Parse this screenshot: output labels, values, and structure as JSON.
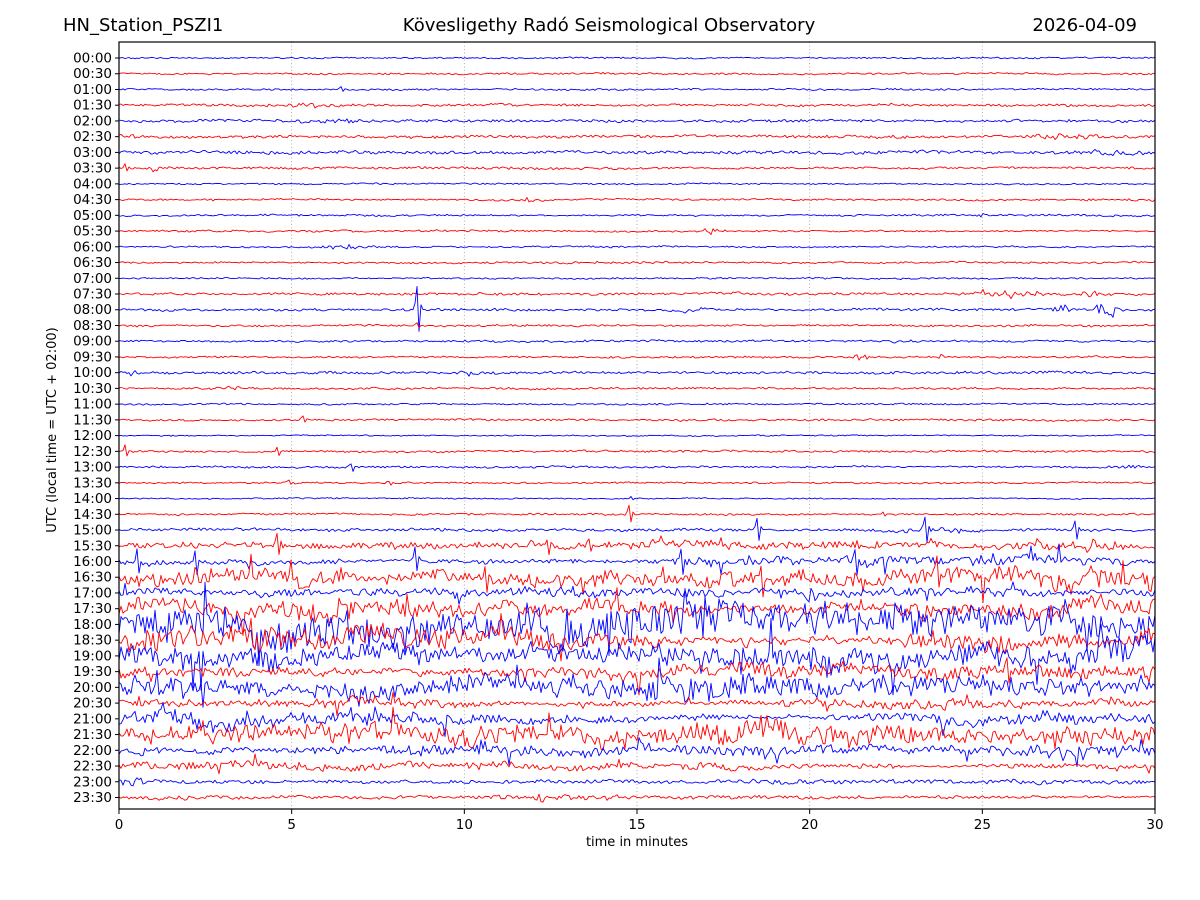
{
  "header": {
    "station": "HN_Station_PSZI1",
    "observatory": "Kövesligethy Radó Seismological Observatory",
    "date": "2026-04-09"
  },
  "chart_data": {
    "type": "line",
    "subtype": "helicorder-seismogram",
    "station": "HN_Station_PSZI1",
    "title": "Kövesligethy Radó Seismological Observatory",
    "date": "2026-04-09",
    "xlabel": "time in minutes",
    "ylabel": "UTC (local time = UTC + 02:00)",
    "x_range": [
      0,
      30
    ],
    "x_ticks": [
      0,
      5,
      10,
      15,
      20,
      25,
      30
    ],
    "grid_x": [
      5,
      10,
      15,
      20,
      25
    ],
    "grid_style": "dotted-vertical",
    "minutes_per_row": 30,
    "legend_position": "none",
    "colors": {
      "even_row_trace": "#0000ff",
      "odd_row_trace": "#ff0000",
      "grid": "#999999",
      "axis": "#000000",
      "background": "#ffffff"
    },
    "events_format": "[minute, amplitude_px, envelope_width_min] ; width <= 0.15 renders as sharp spike",
    "rows": [
      {
        "time": "00:00",
        "color": "blue",
        "amp": 0.9,
        "events": []
      },
      {
        "time": "00:30",
        "color": "red",
        "amp": 1.0,
        "events": []
      },
      {
        "time": "01:00",
        "color": "blue",
        "amp": 1.0,
        "events": [
          [
            6.4,
            2.5,
            0.06
          ]
        ]
      },
      {
        "time": "01:30",
        "color": "red",
        "amp": 1.5,
        "events": [
          [
            5.5,
            1.8,
            1.2
          ]
        ]
      },
      {
        "time": "02:00",
        "color": "blue",
        "amp": 1.7,
        "events": [
          [
            6.3,
            2.2,
            0.6
          ]
        ]
      },
      {
        "time": "02:30",
        "color": "red",
        "amp": 1.7,
        "events": [
          [
            0.3,
            2.5,
            0.3
          ],
          [
            27.5,
            2.2,
            1.2
          ]
        ]
      },
      {
        "time": "03:00",
        "color": "blue",
        "amp": 1.9,
        "events": [
          [
            6.0,
            2.0,
            0.8
          ],
          [
            28.8,
            3.5,
            0.9
          ]
        ]
      },
      {
        "time": "03:30",
        "color": "red",
        "amp": 1.4,
        "events": [
          [
            0.15,
            3.5,
            0.12
          ],
          [
            1.1,
            2.5,
            0.6
          ]
        ]
      },
      {
        "time": "04:00",
        "color": "blue",
        "amp": 0.9,
        "events": []
      },
      {
        "time": "04:30",
        "color": "red",
        "amp": 1.1,
        "events": [
          [
            2.6,
            1.5,
            0.3
          ],
          [
            12.0,
            2.2,
            0.4
          ]
        ]
      },
      {
        "time": "05:00",
        "color": "blue",
        "amp": 1.1,
        "events": [
          [
            24.9,
            2.5,
            0.25
          ]
        ]
      },
      {
        "time": "05:30",
        "color": "red",
        "amp": 1.1,
        "events": [
          [
            17.2,
            3.0,
            0.3
          ]
        ]
      },
      {
        "time": "06:00",
        "color": "blue",
        "amp": 1.1,
        "events": [
          [
            6.6,
            2.5,
            0.7
          ]
        ]
      },
      {
        "time": "06:30",
        "color": "red",
        "amp": 1.1,
        "events": []
      },
      {
        "time": "07:00",
        "color": "blue",
        "amp": 0.9,
        "events": []
      },
      {
        "time": "07:30",
        "color": "red",
        "amp": 1.5,
        "events": [
          [
            22.6,
            2.0,
            0.25
          ],
          [
            25.6,
            4.0,
            1.1
          ],
          [
            28.2,
            2.5,
            0.4
          ]
        ]
      },
      {
        "time": "08:00",
        "color": "blue",
        "amp": 1.5,
        "events": [
          [
            8.62,
            24,
            0.05
          ],
          [
            16.5,
            2.0,
            0.6
          ],
          [
            27.3,
            5,
            0.22
          ],
          [
            28.55,
            13,
            0.28
          ]
        ]
      },
      {
        "time": "08:30",
        "color": "red",
        "amp": 1.3,
        "events": [
          [
            8.62,
            2.5,
            0.05
          ]
        ]
      },
      {
        "time": "09:00",
        "color": "blue",
        "amp": 1.1,
        "events": [
          [
            22.55,
            2.5,
            0.3
          ]
        ]
      },
      {
        "time": "09:30",
        "color": "red",
        "amp": 1.2,
        "events": [
          [
            21.5,
            3.5,
            0.25
          ],
          [
            23.7,
            2.2,
            0.18
          ]
        ]
      },
      {
        "time": "10:00",
        "color": "blue",
        "amp": 1.5,
        "events": [
          [
            0.4,
            3.0,
            0.2
          ],
          [
            10.2,
            2.0,
            0.4
          ]
        ]
      },
      {
        "time": "10:30",
        "color": "red",
        "amp": 1.2,
        "events": [
          [
            3.1,
            2.0,
            0.45
          ]
        ]
      },
      {
        "time": "11:00",
        "color": "blue",
        "amp": 1.0,
        "events": []
      },
      {
        "time": "11:30",
        "color": "red",
        "amp": 1.2,
        "events": [
          [
            5.3,
            3.0,
            0.06
          ]
        ]
      },
      {
        "time": "12:00",
        "color": "blue",
        "amp": 0.8,
        "events": []
      },
      {
        "time": "12:30",
        "color": "red",
        "amp": 1.1,
        "events": [
          [
            0.2,
            6,
            0.1
          ],
          [
            4.6,
            4,
            0.1
          ]
        ]
      },
      {
        "time": "13:00",
        "color": "blue",
        "amp": 1.2,
        "events": [
          [
            6.7,
            4,
            0.08
          ],
          [
            29.2,
            2.8,
            0.5
          ]
        ]
      },
      {
        "time": "13:30",
        "color": "red",
        "amp": 1.0,
        "events": [
          [
            4.9,
            2.5,
            0.06
          ],
          [
            7.8,
            2.0,
            0.06
          ]
        ]
      },
      {
        "time": "14:00",
        "color": "blue",
        "amp": 0.8,
        "events": [
          [
            14.8,
            1.8,
            0.08
          ]
        ]
      },
      {
        "time": "14:30",
        "color": "red",
        "amp": 1.1,
        "events": [
          [
            14.75,
            9,
            0.09
          ],
          [
            22.1,
            3,
            0.09
          ]
        ]
      },
      {
        "time": "15:00",
        "color": "blue",
        "amp": 1.6,
        "events": [
          [
            18.5,
            12,
            0.09
          ],
          [
            23.35,
            14,
            0.1
          ],
          [
            27.7,
            9,
            0.09
          ],
          [
            23.5,
            2.5,
            1.2
          ]
        ]
      },
      {
        "time": "15:30",
        "color": "red",
        "amp": 3.2,
        "events": [
          [
            4.6,
            11,
            0.1
          ],
          [
            12.4,
            9,
            0.1
          ],
          [
            13.6,
            8,
            0.1
          ],
          [
            27.5,
            4,
            1.5
          ]
        ]
      },
      {
        "time": "16:00",
        "color": "blue",
        "amp": 4.2,
        "events": [
          [
            0.5,
            11,
            0.1
          ],
          [
            2.2,
            13,
            0.12
          ],
          [
            8.6,
            12,
            0.1
          ],
          [
            16.3,
            15,
            0.1
          ],
          [
            21.3,
            13,
            0.1
          ],
          [
            26.4,
            9,
            0.1
          ]
        ]
      },
      {
        "time": "16:30",
        "color": "red",
        "amp": 6.5,
        "events": [
          [
            10.6,
            14,
            0.12
          ],
          [
            18.6,
            16,
            0.12
          ],
          [
            23.7,
            18,
            0.12
          ]
        ]
      },
      {
        "time": "17:00",
        "color": "blue",
        "amp": 4.5,
        "events": [
          [
            13.0,
            10,
            0.3
          ],
          [
            20.0,
            12,
            0.2
          ]
        ]
      },
      {
        "time": "17:30",
        "color": "red",
        "amp": 10,
        "events": []
      },
      {
        "time": "18:00",
        "color": "blue",
        "amp": 15,
        "events": []
      },
      {
        "time": "18:30",
        "color": "red",
        "amp": 14,
        "events": []
      },
      {
        "time": "19:00",
        "color": "blue",
        "amp": 13,
        "events": []
      },
      {
        "time": "19:30",
        "color": "red",
        "amp": 6.5,
        "events": []
      },
      {
        "time": "20:00",
        "color": "blue",
        "amp": 10,
        "events": []
      },
      {
        "time": "20:30",
        "color": "red",
        "amp": 4.5,
        "events": []
      },
      {
        "time": "21:00",
        "color": "blue",
        "amp": 7.5,
        "events": []
      },
      {
        "time": "21:30",
        "color": "red",
        "amp": 8.5,
        "events": []
      },
      {
        "time": "22:00",
        "color": "blue",
        "amp": 6.5,
        "events": []
      },
      {
        "time": "22:30",
        "color": "red",
        "amp": 4.0,
        "events": []
      },
      {
        "time": "23:00",
        "color": "blue",
        "amp": 2.2,
        "events": [
          [
            0.5,
            3,
            0.5
          ]
        ]
      },
      {
        "time": "23:30",
        "color": "red",
        "amp": 2.0,
        "events": [
          [
            2.0,
            3,
            0.25
          ],
          [
            13.0,
            2.5,
            2.0
          ]
        ]
      }
    ]
  }
}
